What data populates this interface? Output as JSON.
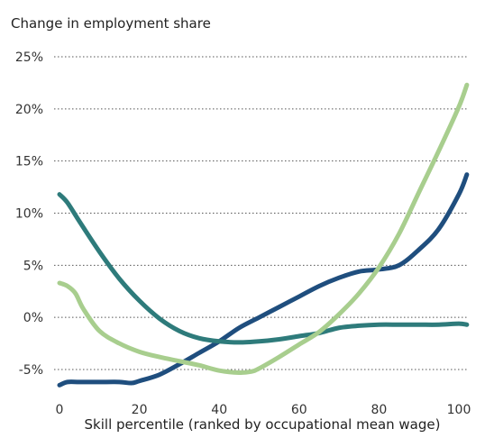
{
  "chart_data": {
    "type": "line",
    "ylabel": "Change in employment share",
    "xlabel": "Skill percentile (ranked by occupational mean wage)",
    "xlim": [
      0,
      100
    ],
    "ylim": [
      -5,
      25
    ],
    "xticks": [
      0,
      20,
      40,
      60,
      80,
      100
    ],
    "xtick_labels": [
      "0",
      "20",
      "40",
      "60",
      "80",
      "100"
    ],
    "yticks": [
      -5,
      0,
      5,
      10,
      15,
      20,
      25
    ],
    "ytick_labels": [
      "-5%",
      "0%",
      "5%",
      "10%",
      "15%",
      "20%",
      "25%"
    ],
    "grid": "horizontal dotted",
    "legend": "none",
    "series": [
      {
        "color": "#1f4e7e",
        "x": [
          0,
          2,
          5,
          10,
          15,
          18,
          20,
          25,
          30,
          35,
          40,
          45,
          50,
          55,
          60,
          65,
          70,
          75,
          80,
          85,
          90,
          95,
          100,
          102
        ],
        "y": [
          -6.5,
          -6.2,
          -6.2,
          -6.2,
          -6.2,
          -6.3,
          -6.1,
          -5.5,
          -4.5,
          -3.4,
          -2.3,
          -1.0,
          0.0,
          1.0,
          2.0,
          3.0,
          3.8,
          4.4,
          4.6,
          5.0,
          6.5,
          8.5,
          11.8,
          13.7
        ]
      },
      {
        "color": "#2e7b7b",
        "x": [
          0,
          2,
          5,
          10,
          15,
          20,
          25,
          30,
          35,
          40,
          45,
          50,
          55,
          60,
          65,
          70,
          75,
          80,
          85,
          90,
          95,
          100,
          102
        ],
        "y": [
          11.8,
          11.0,
          9.2,
          6.3,
          3.7,
          1.6,
          -0.1,
          -1.3,
          -2.0,
          -2.3,
          -2.4,
          -2.3,
          -2.1,
          -1.8,
          -1.5,
          -1.0,
          -0.8,
          -0.7,
          -0.7,
          -0.7,
          -0.7,
          -0.6,
          -0.7
        ]
      },
      {
        "color": "#a8ce8e",
        "x": [
          0,
          2,
          4,
          6,
          10,
          15,
          20,
          25,
          30,
          35,
          40,
          45,
          48,
          50,
          55,
          60,
          65,
          70,
          75,
          80,
          85,
          90,
          95,
          100,
          102
        ],
        "y": [
          3.3,
          3.0,
          2.3,
          0.8,
          -1.3,
          -2.5,
          -3.3,
          -3.8,
          -4.2,
          -4.6,
          -5.1,
          -5.3,
          -5.2,
          -4.9,
          -3.8,
          -2.6,
          -1.4,
          0.3,
          2.3,
          4.8,
          8.0,
          12.0,
          16.0,
          20.2,
          22.3
        ]
      }
    ]
  }
}
